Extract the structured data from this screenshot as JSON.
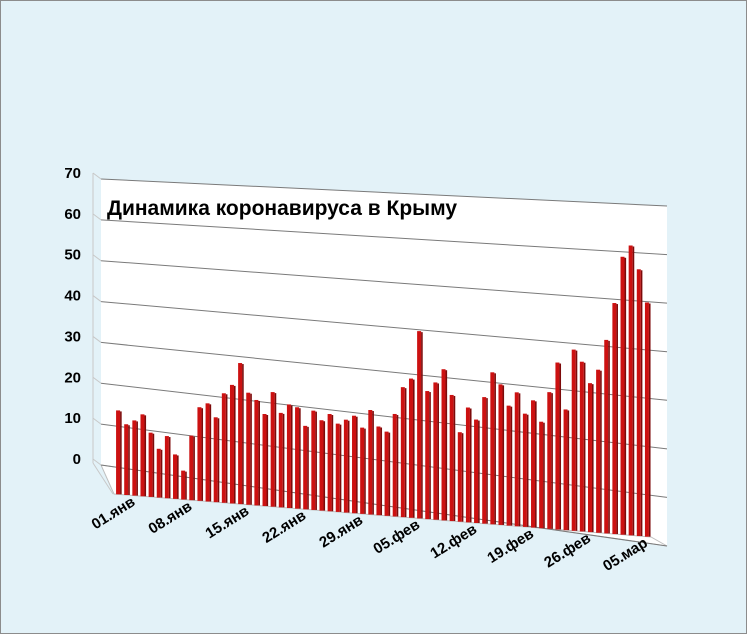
{
  "chart_data": {
    "type": "bar",
    "title": "Динамика  коронавируса в Крыму",
    "xlabel": "",
    "ylabel": "",
    "ylim": [
      0,
      70
    ],
    "y_ticks": [
      "0",
      "10",
      "20",
      "30",
      "40",
      "50",
      "60",
      "70"
    ],
    "x_tick_labels": [
      {
        "index": 0,
        "label": "01.янв"
      },
      {
        "index": 7,
        "label": "08.янв"
      },
      {
        "index": 14,
        "label": "15.янв"
      },
      {
        "index": 21,
        "label": "22.янв"
      },
      {
        "index": 28,
        "label": "29.янв"
      },
      {
        "index": 35,
        "label": "05.фев"
      },
      {
        "index": 42,
        "label": "12.фев"
      },
      {
        "index": 49,
        "label": "19.фев"
      },
      {
        "index": 56,
        "label": "26.фев"
      },
      {
        "index": 63,
        "label": "05.мар"
      }
    ],
    "grid": true,
    "legend": "none",
    "bar_color": "#cc1111",
    "values": [
      19,
      16,
      17,
      18.5,
      14.5,
      11,
      14,
      10,
      6.5,
      14.5,
      21,
      22,
      19,
      24.5,
      26.5,
      31.5,
      25,
      23.5,
      20.5,
      25.5,
      21,
      23,
      22.5,
      18.5,
      22,
      20,
      21.5,
      19.5,
      20.5,
      21.5,
      19,
      23,
      19.5,
      18.5,
      22.5,
      28.5,
      30.5,
      41,
      28,
      30,
      33,
      27.5,
      19.5,
      25,
      22.5,
      27.5,
      33,
      30.5,
      26,
      29,
      24.5,
      27.5,
      23,
      29.5,
      36,
      26,
      39,
      36.5,
      32,
      35,
      41.5,
      49.5,
      59.5,
      62,
      57,
      50
    ]
  }
}
